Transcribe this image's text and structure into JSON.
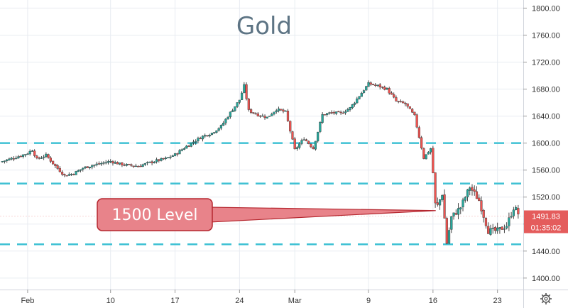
{
  "chart_data": {
    "type": "candlestick",
    "title": "Gold",
    "y_axis": {
      "position": "right",
      "ylim": [
        1383,
        1812
      ],
      "ticks": [
        "1400.00",
        "1440.00",
        "1480.00",
        "1520.00",
        "1560.00",
        "1600.00",
        "1640.00",
        "1680.00",
        "1720.00",
        "1760.00",
        "1800.00"
      ],
      "tick_values": [
        1400,
        1440,
        1480,
        1520,
        1560,
        1600,
        1640,
        1680,
        1720,
        1760,
        1800
      ]
    },
    "x_axis": {
      "ticks": [
        {
          "label": "Feb",
          "day": 0
        },
        {
          "label": "10",
          "day": 9
        },
        {
          "label": "17",
          "day": 16
        },
        {
          "label": "24",
          "day": 23
        },
        {
          "label": "Mar",
          "day": 29
        },
        {
          "label": "9",
          "day": 37
        },
        {
          "label": "16",
          "day": 44
        },
        {
          "label": "23",
          "day": 51
        }
      ],
      "xlim": [
        -3,
        53.8
      ]
    },
    "horizontal_levels": [
      1600,
      1540,
      1450
    ],
    "annotation": {
      "text": "1500 Level",
      "target_day": 44.3,
      "target_price": 1500
    },
    "last_price": {
      "value": "1491.83",
      "countdown": "01:35:02",
      "price": 1491.83
    },
    "close_path": [
      [
        -3,
        1572
      ],
      [
        -1.5,
        1578
      ],
      [
        0,
        1585
      ],
      [
        0.5,
        1590
      ],
      [
        1,
        1576
      ],
      [
        2,
        1582
      ],
      [
        3,
        1566
      ],
      [
        4,
        1552
      ],
      [
        5,
        1555
      ],
      [
        6,
        1563
      ],
      [
        7,
        1567
      ],
      [
        8,
        1570
      ],
      [
        9,
        1573
      ],
      [
        10,
        1569
      ],
      [
        11,
        1567
      ],
      [
        12,
        1566
      ],
      [
        13,
        1570
      ],
      [
        14,
        1574
      ],
      [
        15,
        1577
      ],
      [
        16,
        1583
      ],
      [
        17,
        1593
      ],
      [
        18,
        1602
      ],
      [
        19,
        1610
      ],
      [
        20,
        1615
      ],
      [
        21,
        1625
      ],
      [
        22,
        1645
      ],
      [
        23,
        1664
      ],
      [
        23.5,
        1685
      ],
      [
        24,
        1648
      ],
      [
        25,
        1642
      ],
      [
        26,
        1638
      ],
      [
        27,
        1650
      ],
      [
        28,
        1646
      ],
      [
        29,
        1590
      ],
      [
        30,
        1607
      ],
      [
        31,
        1592
      ],
      [
        32,
        1642
      ],
      [
        33,
        1645
      ],
      [
        34,
        1644
      ],
      [
        35,
        1652
      ],
      [
        36,
        1670
      ],
      [
        37,
        1688
      ],
      [
        38,
        1685
      ],
      [
        39,
        1680
      ],
      [
        40,
        1662
      ],
      [
        41,
        1658
      ],
      [
        42,
        1640
      ],
      [
        43,
        1578
      ],
      [
        43.8,
        1593
      ],
      [
        44.3,
        1500
      ],
      [
        45,
        1525
      ],
      [
        45.5,
        1452
      ],
      [
        46,
        1490
      ],
      [
        47,
        1505
      ],
      [
        48,
        1535
      ],
      [
        49,
        1515
      ],
      [
        50,
        1470
      ],
      [
        51,
        1470
      ],
      [
        52,
        1478
      ],
      [
        52.8,
        1506
      ],
      [
        53.4,
        1492
      ]
    ]
  },
  "colors": {
    "up": "#26a69a",
    "down": "#ef5350",
    "wick": "#333333",
    "level_line": "#3fc1d3",
    "callout_fill": "#e8838a",
    "callout_stroke": "#b5272f",
    "price_label_fill": "#e45c5c",
    "grid": "#e8ecf1",
    "title": "#5d7484"
  },
  "icons": {
    "settings": "gear-icon"
  }
}
